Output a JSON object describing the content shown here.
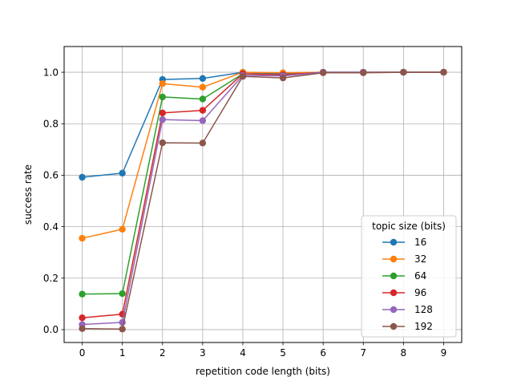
{
  "chart_data": {
    "type": "line",
    "title": "",
    "xlabel": "repetition code length (bits)",
    "ylabel": "success rate",
    "x": [
      0,
      1,
      2,
      3,
      4,
      5,
      6,
      7,
      8,
      9
    ],
    "xticks": [
      "0",
      "1",
      "2",
      "3",
      "4",
      "5",
      "6",
      "7",
      "8",
      "9"
    ],
    "yticks": [
      "0.0",
      "0.2",
      "0.4",
      "0.6",
      "0.8",
      "1.0"
    ],
    "xlim": [
      -0.45,
      9.45
    ],
    "ylim": [
      -0.05,
      1.1
    ],
    "grid": true,
    "legend": {
      "title": "topic size (bits)",
      "placement": "lower-right"
    },
    "series": [
      {
        "name": "16",
        "color": "#1f77b4",
        "values": [
          0.592,
          0.608,
          0.972,
          0.976,
          1.0,
          0.994,
          1.0,
          1.0,
          1.0,
          1.0
        ]
      },
      {
        "name": "32",
        "color": "#ff7f0e",
        "values": [
          0.355,
          0.39,
          0.956,
          0.942,
          1.0,
          0.998,
          1.0,
          1.0,
          1.0,
          1.0
        ]
      },
      {
        "name": "64",
        "color": "#2ca02c",
        "values": [
          0.138,
          0.14,
          0.904,
          0.896,
          0.994,
          0.99,
          1.0,
          1.0,
          1.0,
          1.0
        ]
      },
      {
        "name": "96",
        "color": "#d62728",
        "values": [
          0.046,
          0.06,
          0.842,
          0.852,
          0.994,
          0.99,
          1.0,
          1.0,
          1.0,
          1.0
        ]
      },
      {
        "name": "128",
        "color": "#9467bd",
        "values": [
          0.02,
          0.028,
          0.816,
          0.812,
          0.988,
          0.986,
          1.0,
          1.0,
          1.0,
          1.0
        ]
      },
      {
        "name": "192",
        "color": "#8c564b",
        "values": [
          0.004,
          0.002,
          0.726,
          0.725,
          0.984,
          0.978,
          0.998,
          0.998,
          1.0,
          1.0
        ]
      }
    ]
  }
}
